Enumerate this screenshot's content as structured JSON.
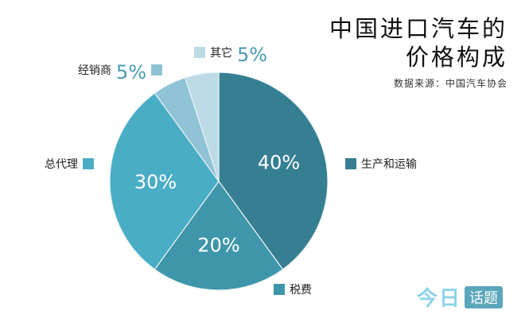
{
  "title_line1": "中国进口汽车的",
  "title_line2": "价格构成",
  "source": "数据来源：中国汽车协会",
  "badge": {
    "left": "今日",
    "right": "话题"
  },
  "chart_data": {
    "type": "pie",
    "start": "top",
    "direction": "clockwise",
    "slices": [
      {
        "label": "生产和运输",
        "value": 40,
        "display": "40%",
        "color": "#367f93"
      },
      {
        "label": "税费",
        "value": 20,
        "display": "20%",
        "color": "#3f96ab"
      },
      {
        "label": "总代理",
        "value": 30,
        "display": "30%",
        "color": "#4aadc6"
      },
      {
        "label": "经销商",
        "value": 5,
        "display": "5%",
        "color": "#8fc3d5"
      },
      {
        "label": "其它",
        "value": 5,
        "display": "5%",
        "color": "#bcdbe6"
      }
    ]
  }
}
